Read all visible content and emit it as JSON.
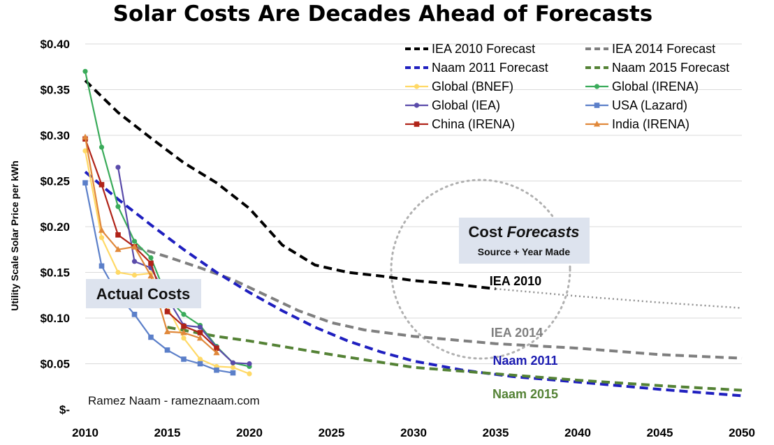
{
  "chart_data": {
    "type": "line",
    "title": "Solar Costs Are Decades Ahead of Forecasts",
    "ylabel": "Utility Scale Solar Price per kWh",
    "xlabel": "",
    "xlim": [
      2010,
      2050
    ],
    "ylim": [
      0,
      0.4
    ],
    "x_ticks": [
      2010,
      2015,
      2020,
      2025,
      2030,
      2035,
      2040,
      2045,
      2050
    ],
    "y_ticks": [
      0,
      0.05,
      0.1,
      0.15,
      0.2,
      0.25,
      0.3,
      0.35,
      0.4
    ],
    "y_tick_labels": [
      "$-",
      "$0.05",
      "$0.10",
      "$0.15",
      "$0.20",
      "$0.25",
      "$0.30",
      "$0.35",
      "$0.40"
    ],
    "grid": "horizontal",
    "legend_position": "top-right",
    "series": [
      {
        "name": "IEA 2010 Forecast",
        "kind": "forecast",
        "color": "#000000",
        "x": [
          2010,
          2012,
          2014,
          2016,
          2018,
          2020,
          2022,
          2024,
          2026,
          2028,
          2030,
          2032,
          2035
        ],
        "y": [
          0.36,
          0.325,
          0.297,
          0.27,
          0.248,
          0.22,
          0.18,
          0.158,
          0.15,
          0.146,
          0.141,
          0.138,
          0.132
        ],
        "dotted_x": [
          2035,
          2040,
          2045,
          2050
        ],
        "dotted_y": [
          0.132,
          0.124,
          0.117,
          0.111
        ]
      },
      {
        "name": "IEA 2014 Forecast",
        "kind": "forecast",
        "color": "#7f7f7f",
        "x": [
          2013,
          2015,
          2017,
          2019,
          2021,
          2023,
          2025,
          2027,
          2030,
          2035,
          2040,
          2045,
          2050
        ],
        "y": [
          0.178,
          0.167,
          0.155,
          0.142,
          0.125,
          0.108,
          0.095,
          0.087,
          0.08,
          0.072,
          0.067,
          0.06,
          0.056
        ]
      },
      {
        "name": "Naam 2011 Forecast",
        "kind": "forecast",
        "color": "#1f1fbf",
        "x": [
          2010,
          2012,
          2014,
          2016,
          2018,
          2020,
          2022,
          2024,
          2026,
          2028,
          2030,
          2033,
          2036,
          2040,
          2045,
          2050
        ],
        "y": [
          0.26,
          0.23,
          0.202,
          0.175,
          0.15,
          0.128,
          0.108,
          0.09,
          0.075,
          0.063,
          0.053,
          0.043,
          0.036,
          0.03,
          0.022,
          0.015
        ]
      },
      {
        "name": "Naam 2015 Forecast",
        "kind": "forecast",
        "color": "#548235",
        "x": [
          2015,
          2018,
          2020,
          2025,
          2030,
          2035,
          2040,
          2045,
          2050
        ],
        "y": [
          0.09,
          0.08,
          0.075,
          0.06,
          0.046,
          0.039,
          0.032,
          0.026,
          0.021
        ]
      },
      {
        "name": "Global (BNEF)",
        "kind": "actual",
        "color": "#ffd966",
        "marker": "circle",
        "x": [
          2010,
          2011,
          2012,
          2013,
          2014,
          2015,
          2016,
          2017,
          2018,
          2019,
          2020
        ],
        "y": [
          0.283,
          0.188,
          0.15,
          0.147,
          0.149,
          0.112,
          0.078,
          0.055,
          0.047,
          0.046,
          0.039
        ]
      },
      {
        "name": "Global (IRENA)",
        "kind": "actual",
        "color": "#3aab5a",
        "marker": "circle",
        "x": [
          2010,
          2011,
          2012,
          2013,
          2014,
          2015,
          2016,
          2017,
          2018,
          2019,
          2020
        ],
        "y": [
          0.37,
          0.287,
          0.222,
          0.184,
          0.166,
          0.122,
          0.104,
          0.092,
          0.069,
          0.051,
          0.047
        ]
      },
      {
        "name": "Global (IEA)",
        "kind": "actual",
        "color": "#5a4baa",
        "marker": "circle",
        "x": [
          2012,
          2013,
          2014,
          2015,
          2016,
          2017,
          2018,
          2019,
          2020
        ],
        "y": [
          0.265,
          0.162,
          0.155,
          0.122,
          0.092,
          0.09,
          0.068,
          0.051,
          0.05
        ]
      },
      {
        "name": "USA (Lazard)",
        "kind": "actual",
        "color": "#5b7fc9",
        "marker": "square",
        "x": [
          2010,
          2011,
          2012,
          2013,
          2014,
          2015,
          2016,
          2017,
          2018,
          2019
        ],
        "y": [
          0.248,
          0.157,
          0.125,
          0.104,
          0.079,
          0.065,
          0.055,
          0.05,
          0.043,
          0.04
        ]
      },
      {
        "name": "China (IRENA)",
        "kind": "actual",
        "color": "#b02318",
        "marker": "square",
        "x": [
          2010,
          2011,
          2012,
          2013,
          2014,
          2015,
          2016,
          2017,
          2018
        ],
        "y": [
          0.296,
          0.246,
          0.191,
          0.178,
          0.16,
          0.107,
          0.091,
          0.084,
          0.067
        ]
      },
      {
        "name": "India (IRENA)",
        "kind": "actual",
        "color": "#e0883a",
        "marker": "triangle",
        "x": [
          2010,
          2011,
          2012,
          2013,
          2014,
          2015,
          2016,
          2017,
          2018
        ],
        "y": [
          0.298,
          0.196,
          0.175,
          0.178,
          0.146,
          0.085,
          0.084,
          0.078,
          0.062
        ]
      }
    ],
    "legend": [
      {
        "label": "IEA 2010 Forecast",
        "color": "#000000",
        "dash": true,
        "text_color": "#000000"
      },
      {
        "label": "IEA 2014 Forecast",
        "color": "#7f7f7f",
        "dash": true,
        "text_color": "#555555"
      },
      {
        "label": "Naam 2011 Forecast",
        "color": "#1f1fbf",
        "dash": true,
        "text_color": "#1a1ab0"
      },
      {
        "label": "Naam 2015 Forecast",
        "color": "#548235",
        "dash": true,
        "text_color": "#4a7a2c"
      },
      {
        "label": "Global (BNEF)",
        "color": "#ffd966",
        "marker": "circle",
        "text_color": "#000000"
      },
      {
        "label": "Global (IRENA)",
        "color": "#3aab5a",
        "marker": "circle",
        "text_color": "#000000"
      },
      {
        "label": "Global (IEA)",
        "color": "#5a4baa",
        "marker": "circle",
        "text_color": "#000000"
      },
      {
        "label": "USA (Lazard)",
        "color": "#5b7fc9",
        "marker": "square",
        "text_color": "#000000"
      },
      {
        "label": "China (IRENA)",
        "color": "#b02318",
        "marker": "square",
        "text_color": "#000000"
      },
      {
        "label": "India (IRENA)",
        "color": "#e0883a",
        "marker": "triangle",
        "text_color": "#000000"
      }
    ],
    "annotations": {
      "actual_costs": "Actual Costs",
      "forecast_box_title_1": "Cost ",
      "forecast_box_title_2": "Forecasts",
      "forecast_box_subtitle": "Source + Year Made",
      "label_iea2010": "IEA 2010",
      "label_iea2014": "IEA 2014",
      "label_naam2011": "Naam 2011",
      "label_naam2015": "Naam 2015",
      "credit": "Ramez Naam - rameznaam.com"
    }
  }
}
